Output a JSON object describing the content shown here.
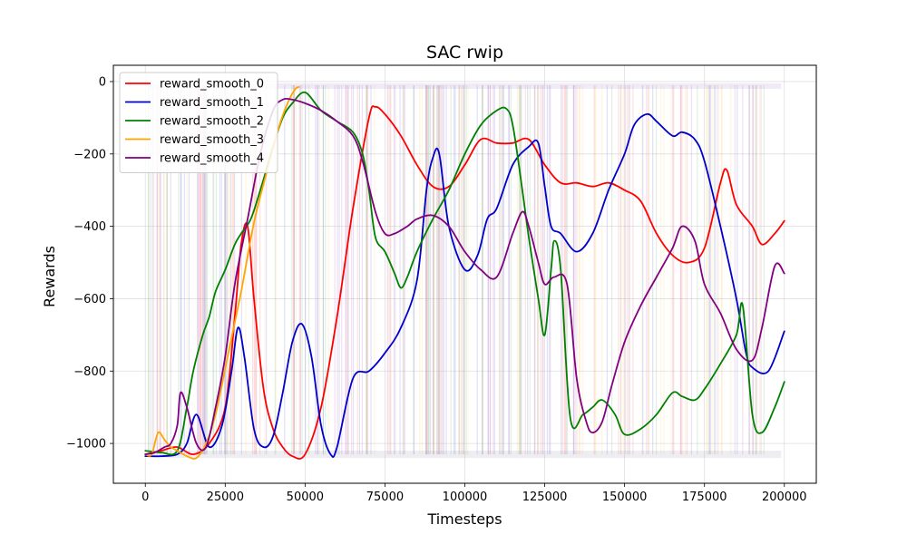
{
  "chart_data": {
    "type": "line",
    "title": "SAC rwip",
    "xlabel": "Timesteps",
    "ylabel": "Rewards",
    "xlim": [
      -10000,
      210000
    ],
    "ylim": [
      -1110,
      45
    ],
    "grid": true,
    "legend_position": "top-left",
    "xticks": [
      0,
      25000,
      50000,
      75000,
      100000,
      125000,
      150000,
      175000,
      200000
    ],
    "yticks": [
      0,
      -200,
      -400,
      -600,
      -800,
      -1000
    ],
    "series": [
      {
        "name": "reward_smooth_0",
        "color": "#ff0000",
        "x": [
          0,
          5000,
          10000,
          15000,
          20000,
          25000,
          28000,
          30000,
          32000,
          34000,
          37000,
          40000,
          43000,
          46000,
          50000,
          55000,
          60000,
          65000,
          70000,
          72000,
          75000,
          80000,
          85000,
          90000,
          95000,
          100000,
          105000,
          110000,
          115000,
          120000,
          125000,
          130000,
          135000,
          140000,
          145000,
          150000,
          155000,
          160000,
          165000,
          170000,
          175000,
          180000,
          182000,
          185000,
          190000,
          193000,
          197000,
          200000
        ],
        "y": [
          -1030,
          -1020,
          -1010,
          -1030,
          -1000,
          -900,
          -650,
          -450,
          -400,
          -600,
          -850,
          -960,
          -1010,
          -1035,
          -1030,
          -900,
          -650,
          -350,
          -100,
          -70,
          -90,
          -150,
          -230,
          -290,
          -290,
          -230,
          -160,
          -170,
          -170,
          -160,
          -230,
          -280,
          -280,
          -290,
          -280,
          -300,
          -330,
          -420,
          -480,
          -500,
          -460,
          -280,
          -245,
          -340,
          -400,
          -450,
          -420,
          -385
        ]
      },
      {
        "name": "reward_smooth_1",
        "color": "#0000cc",
        "x": [
          0,
          5000,
          10000,
          13000,
          16000,
          20000,
          24000,
          27000,
          29000,
          31000,
          34000,
          37000,
          40000,
          43000,
          46000,
          49000,
          52000,
          55000,
          58000,
          60000,
          65000,
          70000,
          75000,
          80000,
          85000,
          88000,
          90000,
          92000,
          95000,
          100000,
          104000,
          107000,
          110000,
          115000,
          120000,
          123000,
          125000,
          127000,
          130000,
          135000,
          140000,
          145000,
          150000,
          153000,
          157000,
          160000,
          165000,
          168000,
          172000,
          175000,
          180000,
          185000,
          188000,
          190000,
          195000,
          200000
        ],
        "y": [
          -1035,
          -1035,
          -1030,
          -1000,
          -920,
          -1010,
          -950,
          -800,
          -680,
          -760,
          -960,
          -1010,
          -980,
          -860,
          -720,
          -670,
          -760,
          -950,
          -1030,
          -1010,
          -820,
          -800,
          -750,
          -680,
          -550,
          -300,
          -210,
          -200,
          -400,
          -520,
          -480,
          -380,
          -350,
          -230,
          -180,
          -170,
          -290,
          -400,
          -420,
          -470,
          -420,
          -300,
          -200,
          -120,
          -90,
          -110,
          -150,
          -140,
          -160,
          -220,
          -400,
          -600,
          -750,
          -790,
          -800,
          -690
        ]
      },
      {
        "name": "reward_smooth_2",
        "color": "#008000",
        "x": [
          0,
          5000,
          10000,
          13000,
          15000,
          18000,
          20000,
          22000,
          25000,
          28000,
          30000,
          33000,
          36000,
          40000,
          43000,
          46000,
          50000,
          55000,
          60000,
          65000,
          68000,
          70000,
          72000,
          75000,
          78000,
          80000,
          82000,
          85000,
          90000,
          95000,
          100000,
          105000,
          110000,
          113000,
          115000,
          118000,
          120000,
          123000,
          125000,
          127000,
          128000,
          130000,
          133000,
          137000,
          140000,
          143000,
          147000,
          150000,
          155000,
          160000,
          165000,
          168000,
          172000,
          175000,
          180000,
          185000,
          187000,
          190000,
          193000,
          197000,
          200000
        ],
        "y": [
          -1020,
          -1025,
          -1020,
          -900,
          -800,
          -700,
          -650,
          -580,
          -520,
          -450,
          -420,
          -380,
          -300,
          -180,
          -100,
          -60,
          -30,
          -80,
          -110,
          -140,
          -200,
          -300,
          -430,
          -470,
          -530,
          -570,
          -540,
          -470,
          -380,
          -300,
          -200,
          -120,
          -80,
          -75,
          -120,
          -300,
          -430,
          -600,
          -700,
          -520,
          -440,
          -520,
          -930,
          -920,
          -900,
          -880,
          -920,
          -975,
          -960,
          -920,
          -860,
          -870,
          -880,
          -850,
          -780,
          -700,
          -620,
          -920,
          -970,
          -900,
          -830
        ]
      },
      {
        "name": "reward_smooth_3",
        "color": "#ffa500",
        "x": [
          0,
          2000,
          4000,
          6000,
          8000,
          10000,
          13000,
          16000,
          19000,
          22000,
          26000,
          30000,
          34000,
          38000,
          42000,
          45000,
          47000,
          48000
        ],
        "y": [
          -1030,
          -1030,
          -970,
          -990,
          -1010,
          -1020,
          -1035,
          -1040,
          -1000,
          -920,
          -750,
          -580,
          -390,
          -250,
          -120,
          -50,
          -20,
          -15
        ]
      },
      {
        "name": "reward_smooth_4",
        "color": "#800080",
        "x": [
          0,
          3000,
          6000,
          8000,
          10000,
          11000,
          13000,
          16000,
          19000,
          22000,
          25000,
          28000,
          32000,
          36000,
          40000,
          43000,
          46000,
          50000,
          55000,
          60000,
          65000,
          68000,
          72000,
          75000,
          78000,
          82000,
          85000,
          90000,
          95000,
          100000,
          105000,
          110000,
          115000,
          118000,
          120000,
          123000,
          125000,
          128000,
          132000,
          135000,
          138000,
          140000,
          143000,
          146000,
          150000,
          155000,
          160000,
          165000,
          168000,
          172000,
          175000,
          180000,
          185000,
          190000,
          193000,
          197000,
          200000
        ],
        "y": [
          -1030,
          -1025,
          -1010,
          -1000,
          -950,
          -860,
          -900,
          -1000,
          -1010,
          -900,
          -760,
          -560,
          -380,
          -200,
          -80,
          -50,
          -50,
          -60,
          -80,
          -110,
          -150,
          -220,
          -360,
          -420,
          -420,
          -400,
          -380,
          -370,
          -400,
          -470,
          -520,
          -540,
          -420,
          -360,
          -400,
          -500,
          -560,
          -540,
          -560,
          -820,
          -940,
          -970,
          -940,
          -840,
          -720,
          -620,
          -540,
          -460,
          -400,
          -440,
          -560,
          -640,
          -740,
          -770,
          -680,
          -510,
          -530
        ]
      }
    ]
  }
}
